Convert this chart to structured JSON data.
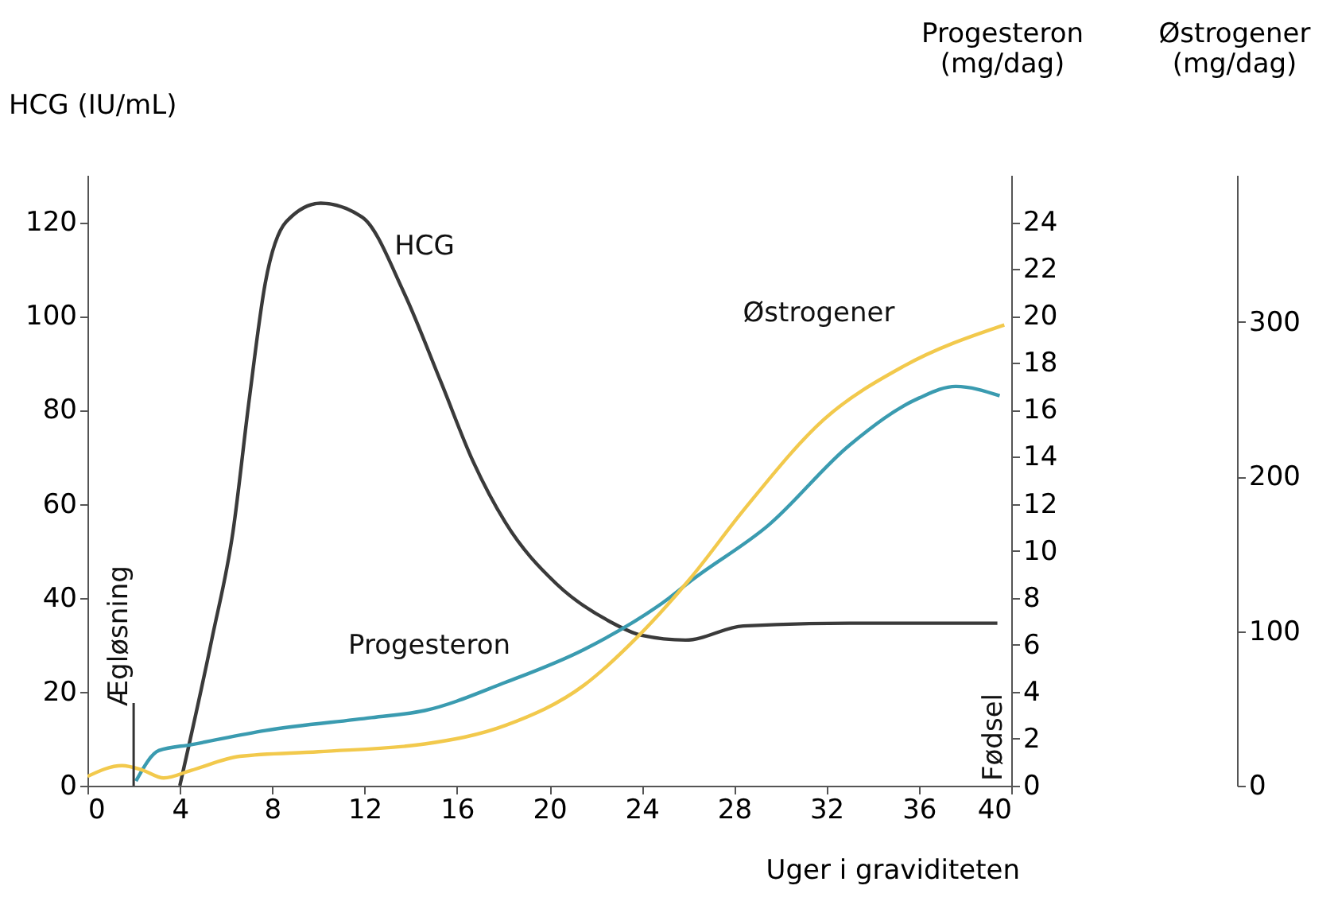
{
  "chart_data": {
    "type": "line",
    "xlabel": "Uger i graviditeten",
    "ylabel": "HCG (IU/mL)",
    "y2label": "Progesteron (mg/dag)",
    "y3label": "Østrogener (mg/dag)",
    "xlim": [
      0,
      40
    ],
    "xticks": [
      0,
      4,
      8,
      12,
      16,
      20,
      24,
      28,
      32,
      36,
      40
    ],
    "ylim": [
      0,
      130
    ],
    "yticks": [
      0,
      20,
      40,
      60,
      80,
      100,
      120
    ],
    "y2lim": [
      0,
      26
    ],
    "y2ticks": [
      0,
      2,
      4,
      6,
      8,
      10,
      12,
      14,
      16,
      18,
      20,
      22,
      24
    ],
    "y3lim": [
      0,
      395
    ],
    "y3ticks": [
      0,
      100,
      200,
      300
    ],
    "grid": false,
    "marker": "none",
    "line_style": "solid",
    "series": [
      {
        "name": "HCG",
        "color": "#3a3a3a",
        "x": [
          4,
          5.4,
          6.3,
          7.0,
          7.7,
          8.6,
          10.1,
          11.9,
          13.7,
          15.3,
          16.7,
          18.1,
          20.3,
          22.6,
          24,
          25.9,
          28.4,
          33,
          39.4
        ],
        "values": [
          0,
          31.5,
          54,
          82,
          107,
          120,
          124,
          121,
          105,
          86,
          69,
          56,
          43,
          35,
          32,
          31,
          34,
          34.6,
          34.6
        ]
      },
      {
        "name": "Progesteron",
        "color": "#3a9bb0",
        "axis": "y2",
        "x": [
          2.1,
          3.1,
          4.5,
          7.7,
          12.3,
          14.6,
          18.1,
          21.5,
          25.2,
          26.1,
          29.5,
          33,
          36,
          37.6,
          39.5
        ],
        "values": [
          0.2,
          1.5,
          1.75,
          2.35,
          2.9,
          3.2,
          4.4,
          5.8,
          8.0,
          8.7,
          11.1,
          14.5,
          16.5,
          17.0,
          16.6
        ]
      },
      {
        "name": "Østrogener",
        "color": "#f2c94c",
        "axis": "y3",
        "x": [
          0,
          1.5,
          2.4,
          3.3,
          4.5,
          6.6,
          10,
          14.6,
          18.1,
          21.5,
          23.8,
          26.1,
          28.4,
          31.9,
          35.3,
          39.7
        ],
        "values": [
          6,
          13,
          10,
          5,
          10,
          19,
          22,
          27,
          39,
          65,
          96,
          134,
          178,
          237,
          271,
          298
        ]
      }
    ],
    "ref_lines": [
      {
        "axis": "x",
        "value": 2,
        "label": "Ægløsning"
      }
    ],
    "annotations": [
      "Fødsel"
    ]
  }
}
